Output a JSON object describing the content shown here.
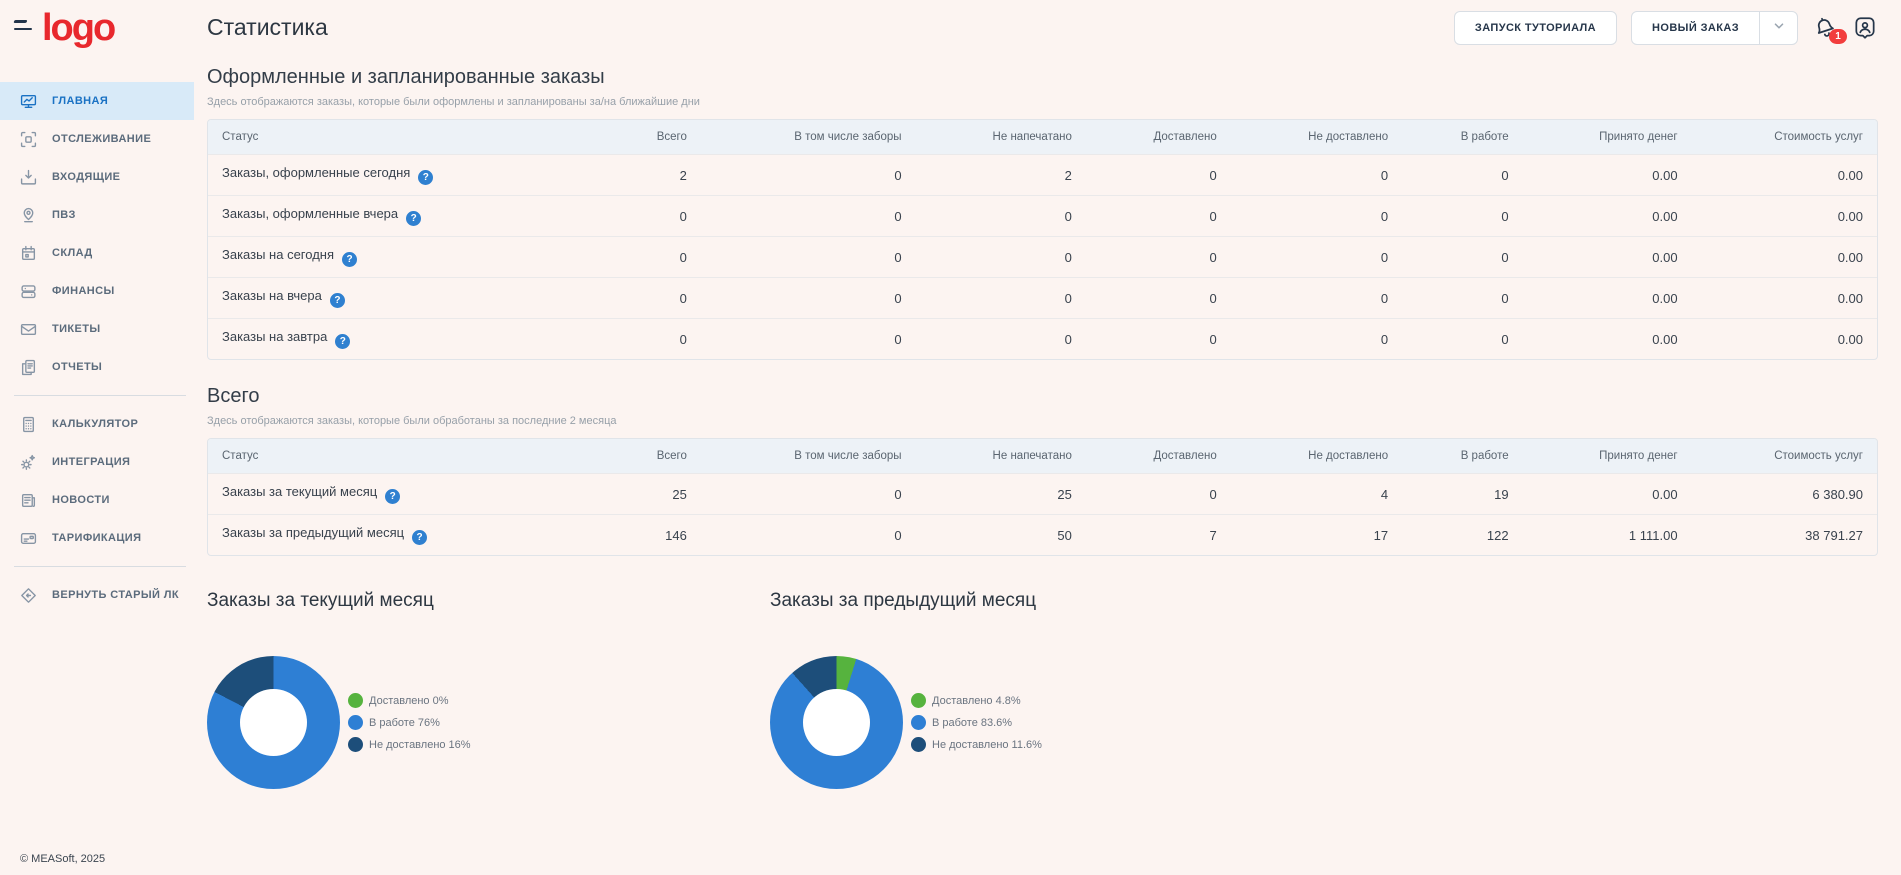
{
  "brand": {
    "logo": "logo",
    "footer": "© MEASoft, 2025"
  },
  "page": {
    "title": "Статистика"
  },
  "topbar": {
    "tutorial_button": "ЗАПУСК ТУТОРИАЛА",
    "new_order_button": "НОВЫЙ ЗАКАЗ",
    "notification_badge": "1"
  },
  "sidebar": {
    "items": [
      {
        "label": "ГЛАВНАЯ",
        "icon": "dashboard-icon",
        "active": true,
        "divider_after": false
      },
      {
        "label": "ОТСЛЕЖИВАНИЕ",
        "icon": "tracking-icon",
        "active": false,
        "divider_after": false
      },
      {
        "label": "ВХОДЯЩИЕ",
        "icon": "inbox-icon",
        "active": false,
        "divider_after": false
      },
      {
        "label": "ПВЗ",
        "icon": "pickup-point-icon",
        "active": false,
        "divider_after": false
      },
      {
        "label": "СКЛАД",
        "icon": "warehouse-icon",
        "active": false,
        "divider_after": false
      },
      {
        "label": "ФИНАНСЫ",
        "icon": "finance-icon",
        "active": false,
        "divider_after": false
      },
      {
        "label": "ТИКЕТЫ",
        "icon": "tickets-icon",
        "active": false,
        "divider_after": false
      },
      {
        "label": "ОТЧЕТЫ",
        "icon": "reports-icon",
        "active": false,
        "divider_after": true
      },
      {
        "label": "КАЛЬКУЛЯТОР",
        "icon": "calculator-icon",
        "active": false,
        "divider_after": false
      },
      {
        "label": "ИНТЕГРАЦИЯ",
        "icon": "integration-icon",
        "active": false,
        "divider_after": false
      },
      {
        "label": "НОВОСТИ",
        "icon": "news-icon",
        "active": false,
        "divider_after": false
      },
      {
        "label": "ТАРИФИКАЦИЯ",
        "icon": "tariff-icon",
        "active": false,
        "divider_after": true
      },
      {
        "label": "ВЕРНУТЬ СТАРЫЙ ЛК",
        "icon": "back-icon",
        "active": false,
        "divider_after": false
      }
    ]
  },
  "tables": [
    {
      "title": "Оформленные и запланированные заказы",
      "subtitle": "Здесь отображаются заказы, которые были оформлены и запланированы за/на ближайшие дни",
      "columns": [
        "Статус",
        "Всего",
        "В том числе заборы",
        "Не напечатано",
        "Доставлено",
        "Не доставлено",
        "В работе",
        "Принято денег",
        "Стоимость услуг"
      ],
      "rows": [
        {
          "status": "Заказы, оформленные сегодня",
          "values": [
            "2",
            "0",
            "2",
            "0",
            "0",
            "0",
            "0.00",
            "0.00"
          ]
        },
        {
          "status": "Заказы, оформленные вчера",
          "values": [
            "0",
            "0",
            "0",
            "0",
            "0",
            "0",
            "0.00",
            "0.00"
          ]
        },
        {
          "status": "Заказы на сегодня",
          "values": [
            "0",
            "0",
            "0",
            "0",
            "0",
            "0",
            "0.00",
            "0.00"
          ]
        },
        {
          "status": "Заказы на вчера",
          "values": [
            "0",
            "0",
            "0",
            "0",
            "0",
            "0",
            "0.00",
            "0.00"
          ]
        },
        {
          "status": "Заказы на завтра",
          "values": [
            "0",
            "0",
            "0",
            "0",
            "0",
            "0",
            "0.00",
            "0.00"
          ]
        }
      ]
    },
    {
      "title": "Всего",
      "subtitle": "Здесь отображаются заказы, которые были обработаны за последние 2 месяца",
      "columns": [
        "Статус",
        "Всего",
        "В том числе заборы",
        "Не напечатано",
        "Доставлено",
        "Не доставлено",
        "В работе",
        "Принято денег",
        "Стоимость услуг"
      ],
      "rows": [
        {
          "status": "Заказы за текущий месяц",
          "values": [
            "25",
            "0",
            "25",
            "0",
            "4",
            "19",
            "0.00",
            "6 380.90"
          ]
        },
        {
          "status": "Заказы за предыдущий месяц",
          "values": [
            "146",
            "0",
            "50",
            "7",
            "17",
            "122",
            "1 111.00",
            "38 791.27"
          ]
        }
      ]
    }
  ],
  "chart_data": [
    {
      "type": "pie",
      "title": "Заказы за текущий месяц",
      "labels": [
        "Доставлено",
        "В работе",
        "Не доставлено"
      ],
      "values_percent": [
        0,
        76,
        16
      ],
      "legend": [
        "Доставлено 0%",
        "В работе 76%",
        "Не доставлено 16%"
      ],
      "colors": [
        "#56b33e",
        "#2e7fd4",
        "#1d4e7a"
      ],
      "legend_position": "right",
      "donut": true
    },
    {
      "type": "pie",
      "title": "Заказы за предыдущий месяц",
      "labels": [
        "Доставлено",
        "В работе",
        "Не доставлено"
      ],
      "values_percent": [
        4.8,
        83.6,
        11.6
      ],
      "legend": [
        "Доставлено 4.8%",
        "В работе 83.6%",
        "Не доставлено 11.6%"
      ],
      "colors": [
        "#56b33e",
        "#2e7fd4",
        "#1d4e7a"
      ],
      "legend_position": "right",
      "donut": true
    }
  ],
  "colors": {
    "background": "#fcf4f1",
    "logo_red": "#e8282d",
    "accent_blue": "#1a72c4",
    "active_item_bg": "#d8eaf8",
    "table_header_bg": "#edf2f7",
    "badge_red": "#f23d3d",
    "help_icon_blue": "#2f80d0",
    "pie_green": "#56b33e",
    "pie_blue": "#2e7fd4",
    "pie_dark_blue": "#1d4e7a"
  }
}
